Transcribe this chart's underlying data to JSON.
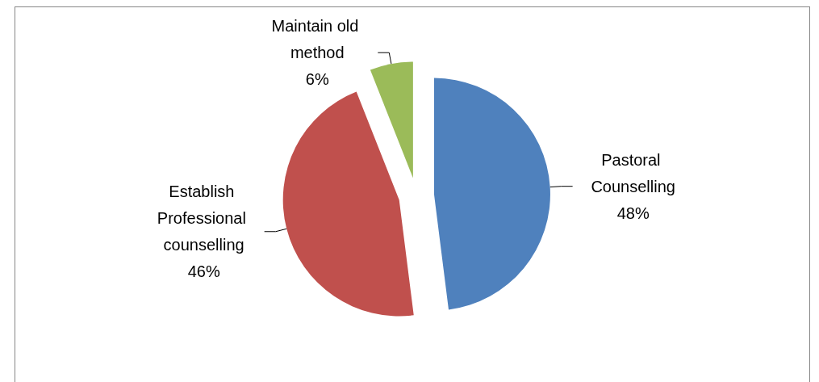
{
  "chart_data": {
    "type": "pie",
    "categories": [
      "Pastoral Counselling",
      "Establish Professional counselling",
      "Maintain old method"
    ],
    "values": [
      48,
      46,
      6
    ],
    "colors": [
      "#4f81bd",
      "#c0504d",
      "#9bbb59"
    ],
    "value_labels": [
      "48%",
      "46%",
      "6%"
    ]
  }
}
